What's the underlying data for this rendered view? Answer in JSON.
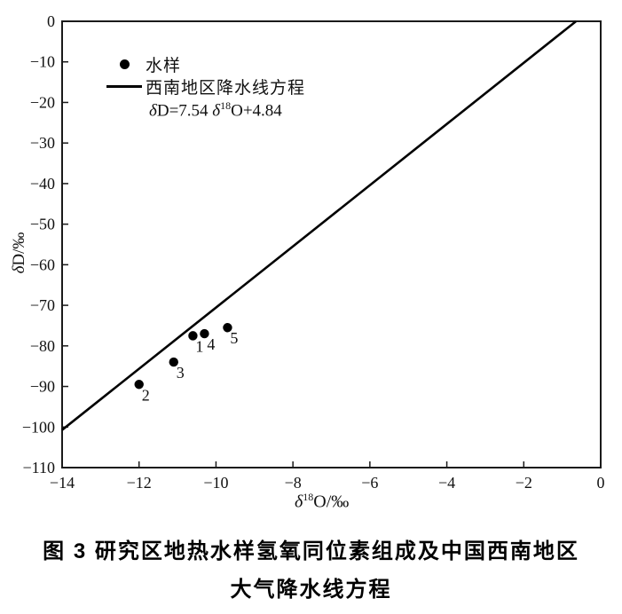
{
  "figure": {
    "caption_line1": "图 3 研究区地热水样氢氧同位素组成及中国西南地区",
    "caption_line2": "大气降水线方程"
  },
  "legend": {
    "sample_label": "水样",
    "line_label": "西南地区降水线方程",
    "equation": {
      "d1": "δ",
      "t1": "D=7.54 ",
      "d2": "δ",
      "sup": "18",
      "t2": "O+4.84"
    }
  },
  "axes": {
    "y_label": {
      "d": "δ",
      "t": "D/‰"
    },
    "x_label": {
      "d": "δ",
      "sup": "18",
      "t": "O/‰"
    }
  },
  "chart_data": {
    "type": "scatter",
    "title": "",
    "xlabel": "δ18O/‰",
    "ylabel": "δD/‰",
    "xlim": [
      -14,
      0
    ],
    "ylim": [
      -110,
      0
    ],
    "x_ticks": [
      -14,
      -12,
      -10,
      -8,
      -6,
      -4,
      -2,
      0
    ],
    "y_ticks": [
      0,
      -10,
      -20,
      -30,
      -40,
      -50,
      -60,
      -70,
      -80,
      -90,
      -100,
      -110
    ],
    "grid": false,
    "legend_position": "top-left",
    "series": [
      {
        "name": "水样",
        "type": "scatter",
        "points": [
          {
            "label": "1",
            "x": -10.6,
            "y": -77.5
          },
          {
            "label": "2",
            "x": -12.0,
            "y": -89.5
          },
          {
            "label": "3",
            "x": -11.1,
            "y": -84.0
          },
          {
            "label": "4",
            "x": -10.3,
            "y": -77.0
          },
          {
            "label": "5",
            "x": -9.7,
            "y": -75.5
          }
        ]
      },
      {
        "name": "西南地区降水线方程",
        "type": "line",
        "equation": "δD=7.54 δ18O+4.84",
        "slope": 7.54,
        "intercept": 4.84
      }
    ],
    "colors": {
      "points": "#000000",
      "line": "#000000",
      "axis": "#1a1a1a",
      "text": "#111111"
    }
  }
}
